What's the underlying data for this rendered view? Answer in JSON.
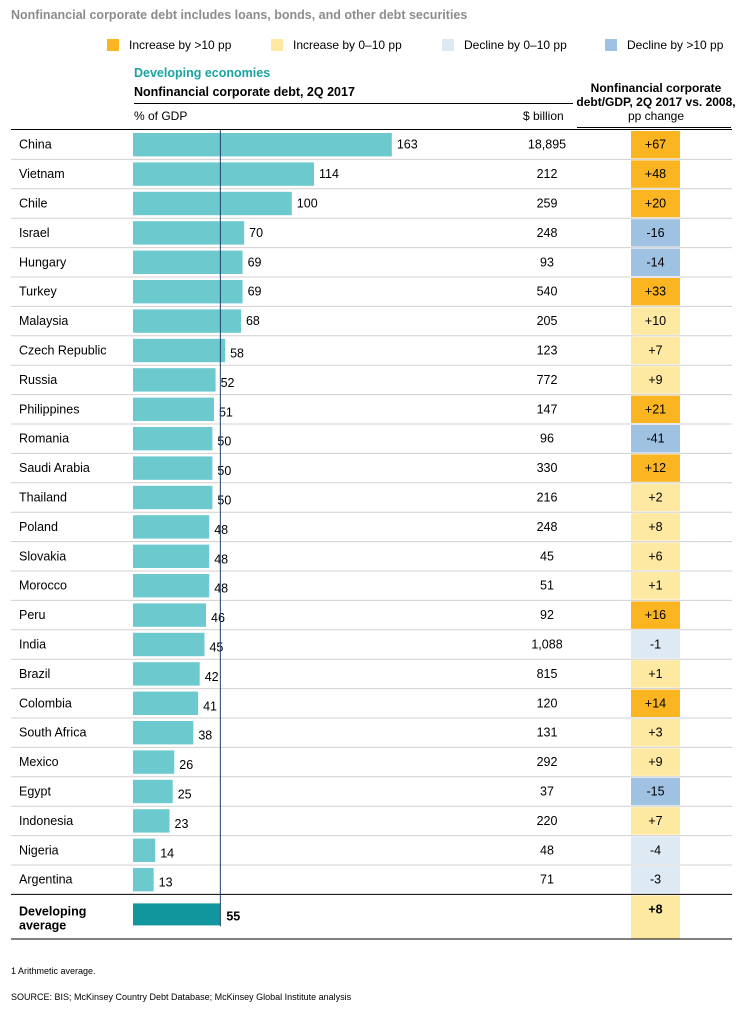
{
  "title": "Nonfinancial corporate debt includes loans, bonds, and other debt securities",
  "legend": [
    {
      "label": "Increase by >10 pp",
      "color": "#fbb520"
    },
    {
      "label": "Increase by 0–10 pp",
      "color": "#fde9a2"
    },
    {
      "label": "Decline by 0–10 pp",
      "color": "#dde9f3"
    },
    {
      "label": "Decline by >10 pp",
      "color": "#9fc2e3"
    }
  ],
  "section_title": "Developing economies",
  "colors": {
    "bar": "#6ccacf",
    "average_bar": "#10969c",
    "average_line": "#1f3f6e"
  },
  "chart_data": {
    "type": "bar",
    "orientation": "horizontal",
    "title": "Nonfinancial corporate debt, 2Q 2017",
    "xlabel": "% of GDP",
    "xlim": [
      0,
      185
    ],
    "grid": false,
    "billion_label": "$ billion",
    "change_title": "Nonfinancial corporate debt/GDP, 2Q 2017 vs. 2008,",
    "change_subtitle": "pp change",
    "categories": [
      "China",
      "Vietnam",
      "Chile",
      "Israel",
      "Hungary",
      "Turkey",
      "Malaysia",
      "Czech Republic",
      "Russia",
      "Philippines",
      "Romania",
      "Saudi Arabia",
      "Thailand",
      "Poland",
      "Slovakia",
      "Morocco",
      "Peru",
      "India",
      "Brazil",
      "Colombia",
      "South Africa",
      "Mexico",
      "Egypt",
      "Indonesia",
      "Nigeria",
      "Argentina"
    ],
    "values": [
      163,
      114,
      100,
      70,
      69,
      69,
      68,
      58,
      52,
      51,
      50,
      50,
      50,
      48,
      48,
      48,
      46,
      45,
      42,
      41,
      38,
      26,
      25,
      23,
      14,
      13
    ],
    "billions": [
      "18,895",
      "212",
      "259",
      "248",
      "93",
      "540",
      "205",
      "123",
      "772",
      "147",
      "96",
      "330",
      "216",
      "248",
      "45",
      "51",
      "92",
      "1,088",
      "815",
      "120",
      "131",
      "292",
      "37",
      "220",
      "48",
      "71"
    ],
    "changes": [
      "+67",
      "+48",
      "+20",
      "-16",
      "-14",
      "+33",
      "+10",
      "+7",
      "+9",
      "+21",
      "-41",
      "+12",
      "+2",
      "+8",
      "+6",
      "+1",
      "+16",
      "-1",
      "+1",
      "+14",
      "+3",
      "+9",
      "-15",
      "+7",
      "-4",
      "-3"
    ],
    "change_classes": [
      "inc_big",
      "inc_big",
      "inc_big",
      "dec_big",
      "dec_big",
      "inc_big",
      "inc_small",
      "inc_small",
      "inc_small",
      "inc_big",
      "dec_big",
      "inc_big",
      "inc_small",
      "inc_small",
      "inc_small",
      "inc_small",
      "inc_big",
      "dec_small",
      "inc_small",
      "inc_big",
      "inc_small",
      "inc_small",
      "dec_big",
      "inc_small",
      "dec_small",
      "dec_small"
    ],
    "average": {
      "label": "Developing average",
      "value": 55,
      "change": "+8",
      "change_class": "inc_small"
    }
  },
  "footnote": "1  Arithmetic average.",
  "source": "SOURCE:  BIS; McKinsey Country Debt Database; McKinsey Global Institute analysis"
}
